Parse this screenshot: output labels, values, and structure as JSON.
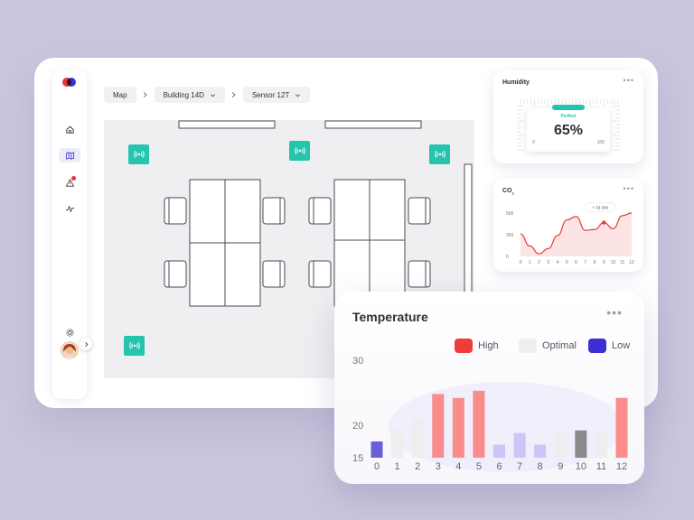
{
  "breadcrumb": {
    "items": [
      {
        "label": "Map"
      },
      {
        "label": "Building 14D"
      },
      {
        "label": "Sensor 12T"
      }
    ]
  },
  "sidebar": {
    "items": [
      "home-icon",
      "map-icon",
      "alert-icon",
      "activity-icon"
    ],
    "settings_icon": "gear-icon"
  },
  "humidity": {
    "title": "Humidity",
    "status": "Perfect",
    "value": "65%",
    "scale_min": "0",
    "scale_max": "100",
    "level": 0.65
  },
  "co2": {
    "title": "CO",
    "subscript": "2",
    "tooltip": "+ 33 000",
    "chart_data": {
      "type": "area",
      "x": [
        0,
        1,
        2,
        3,
        4,
        5,
        6,
        7,
        8,
        9,
        10,
        11,
        12
      ],
      "values": [
        260,
        120,
        30,
        90,
        240,
        420,
        460,
        300,
        310,
        390,
        320,
        470,
        500
      ],
      "ylim": [
        0,
        500
      ],
      "yticks": [
        "0",
        "250",
        "500"
      ],
      "xticks": [
        "0",
        "1",
        "2",
        "3",
        "4",
        "5",
        "6",
        "7",
        "8",
        "9",
        "10",
        "11",
        "12"
      ]
    }
  },
  "temperature": {
    "title": "Temperature",
    "legend": [
      {
        "label": "High",
        "color": "#ef3b3b"
      },
      {
        "label": "Optimal",
        "color": "#efefef"
      },
      {
        "label": "Low",
        "color": "#3b2ed4"
      }
    ],
    "chart_data": {
      "type": "bar",
      "categories": [
        "0",
        "1",
        "2",
        "3",
        "4",
        "5",
        "6",
        "7",
        "8",
        "9",
        "10",
        "11",
        "12"
      ],
      "values": [
        17.5,
        19.5,
        21.0,
        24.8,
        24.2,
        25.3,
        17.0,
        18.8,
        17.0,
        19.2,
        19.2,
        19.2,
        24.2
      ],
      "classes": [
        "low",
        "optimal",
        "optimal",
        "high",
        "high",
        "high",
        "low",
        "low",
        "low",
        "optimal",
        "selected",
        "optimal",
        "high"
      ],
      "ylim": [
        15,
        30
      ],
      "yticks": [
        "15",
        "20",
        "30"
      ]
    },
    "colors": {
      "high": "#fa8c8c",
      "optimal": "#eeeeee",
      "low": "#cbc6f5",
      "low_active": "#6a5fd8",
      "selected": "#8a8a8a"
    }
  }
}
